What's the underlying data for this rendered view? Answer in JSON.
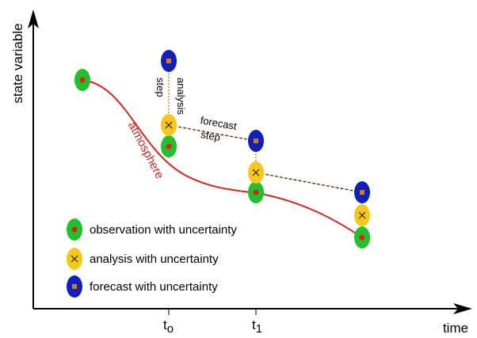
{
  "axes": {
    "y_label": "state variable",
    "x_label": "time",
    "ticks": [
      {
        "label": "t",
        "subscript": "o"
      },
      {
        "label": "t",
        "subscript": "1"
      }
    ]
  },
  "annotations": {
    "atmosphere": "atmosphere",
    "analysis_step": [
      "analysis",
      "step"
    ],
    "forecast_step": [
      "forecast",
      "step"
    ]
  },
  "legend": [
    {
      "label": "observation with uncertainty"
    },
    {
      "label": "analysis with uncertainty"
    },
    {
      "label": "forecast with uncertainty"
    }
  ]
}
